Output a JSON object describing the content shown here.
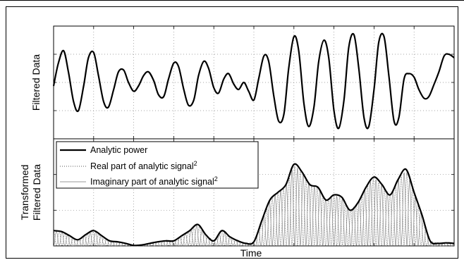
{
  "chart_data": [
    {
      "type": "line",
      "ylabel": "Filtered Data",
      "xlabel": "",
      "x_range": [
        0,
        1
      ],
      "y_range": [
        -1.6,
        1.6
      ],
      "grid": true,
      "tick_labels": false,
      "legend": null,
      "series": [
        {
          "style": "thick-solid",
          "color": "#000000",
          "x": [
            0.0,
            0.012,
            0.025,
            0.037,
            0.05,
            0.062,
            0.075,
            0.087,
            0.1,
            0.112,
            0.125,
            0.137,
            0.15,
            0.162,
            0.175,
            0.187,
            0.2,
            0.212,
            0.225,
            0.237,
            0.25,
            0.262,
            0.275,
            0.287,
            0.3,
            0.312,
            0.325,
            0.337,
            0.35,
            0.362,
            0.375,
            0.387,
            0.4,
            0.412,
            0.425,
            0.437,
            0.45,
            0.462,
            0.475,
            0.487,
            0.5,
            0.512,
            0.525,
            0.537,
            0.55,
            0.562,
            0.575,
            0.587,
            0.6,
            0.612,
            0.625,
            0.637,
            0.65,
            0.662,
            0.675,
            0.687,
            0.7,
            0.712,
            0.725,
            0.737,
            0.75,
            0.762,
            0.775,
            0.787,
            0.8,
            0.812,
            0.825,
            0.837,
            0.85,
            0.862,
            0.875,
            0.887,
            0.9,
            0.912,
            0.925,
            0.937,
            0.95,
            0.962,
            0.975,
            0.987,
            1.0
          ],
          "values": [
            -0.1,
            0.55,
            0.9,
            0.3,
            -0.55,
            -0.8,
            -0.1,
            0.7,
            0.85,
            0.2,
            -0.55,
            -0.7,
            -0.2,
            0.3,
            0.35,
            0.0,
            -0.25,
            -0.1,
            0.2,
            0.3,
            0.05,
            -0.35,
            -0.4,
            0.1,
            0.55,
            0.45,
            -0.2,
            -0.65,
            -0.5,
            0.2,
            0.6,
            0.4,
            -0.15,
            -0.3,
            0.1,
            0.25,
            -0.05,
            -0.2,
            0.0,
            -0.25,
            -0.5,
            0.1,
            0.75,
            0.6,
            -0.4,
            -1.1,
            -0.9,
            0.4,
            1.3,
            0.9,
            -0.6,
            -1.25,
            -0.7,
            0.6,
            1.2,
            0.7,
            -0.8,
            -1.3,
            -0.5,
            1.0,
            1.35,
            0.4,
            -1.0,
            -1.25,
            -0.2,
            1.15,
            1.3,
            0.2,
            -1.1,
            -1.0,
            0.1,
            0.25,
            0.15,
            -0.2,
            -0.45,
            -0.4,
            -0.05,
            0.3,
            0.75,
            0.8,
            0.7
          ]
        }
      ]
    },
    {
      "type": "line",
      "ylabel": "Transformed\nFiltered Data",
      "xlabel": "Time",
      "x_range": [
        0,
        1
      ],
      "y_range": [
        0,
        2.1
      ],
      "grid": true,
      "tick_labels": false,
      "legend_position": "top-left",
      "series": [
        {
          "name": "Analytic power",
          "style": "thick-solid",
          "color": "#000000",
          "x": [
            0.0,
            0.02,
            0.04,
            0.06,
            0.08,
            0.1,
            0.12,
            0.14,
            0.16,
            0.18,
            0.2,
            0.22,
            0.24,
            0.26,
            0.28,
            0.3,
            0.32,
            0.34,
            0.36,
            0.38,
            0.4,
            0.42,
            0.44,
            0.46,
            0.48,
            0.5,
            0.52,
            0.54,
            0.56,
            0.58,
            0.6,
            0.62,
            0.64,
            0.66,
            0.68,
            0.7,
            0.72,
            0.74,
            0.76,
            0.78,
            0.8,
            0.82,
            0.84,
            0.86,
            0.88,
            0.9,
            0.92,
            0.94,
            0.96,
            0.98,
            1.0
          ],
          "values": [
            0.3,
            0.28,
            0.2,
            0.12,
            0.22,
            0.3,
            0.2,
            0.1,
            0.08,
            0.05,
            0.01,
            0.02,
            0.05,
            0.08,
            0.1,
            0.1,
            0.2,
            0.3,
            0.42,
            0.22,
            0.1,
            0.3,
            0.18,
            0.1,
            0.05,
            0.08,
            0.5,
            0.9,
            1.05,
            1.2,
            1.6,
            1.45,
            1.2,
            1.15,
            0.9,
            1.0,
            0.95,
            0.7,
            0.85,
            1.15,
            1.35,
            1.2,
            1.0,
            1.3,
            1.5,
            1.05,
            0.6,
            0.1,
            0.05,
            0.06,
            0.05
          ]
        },
        {
          "name": "Real part of analytic signal²",
          "style": "dotted",
          "color": "#555555",
          "x": [],
          "values": []
        },
        {
          "name": "Imaginary part of analytic signal²",
          "style": "thin-solid",
          "color": "#777777",
          "x": [],
          "values": []
        }
      ],
      "oscillation_period": 0.028
    }
  ]
}
